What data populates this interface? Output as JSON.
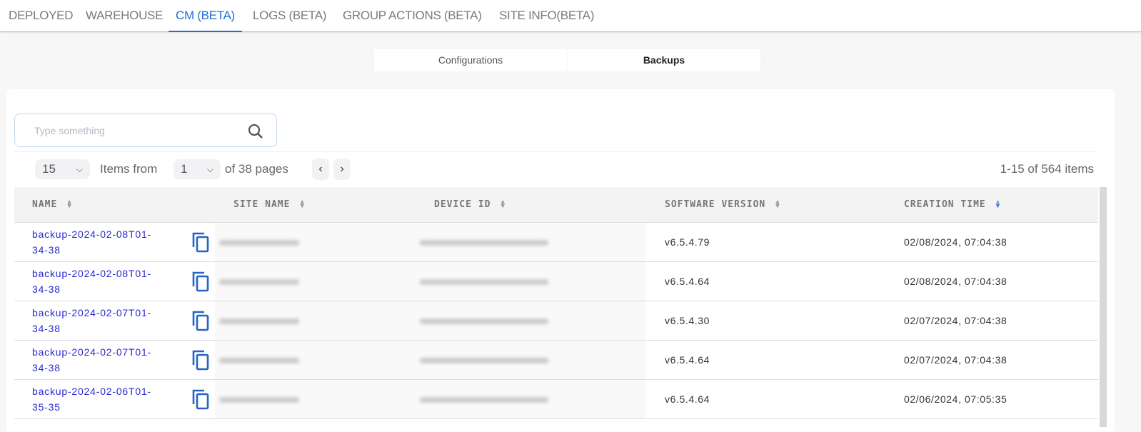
{
  "tabs": [
    {
      "label": "DEPLOYED"
    },
    {
      "label": "WAREHOUSE"
    },
    {
      "label": "CM (BETA)",
      "active": true
    },
    {
      "label": "LOGS (BETA)"
    },
    {
      "label": "GROUP ACTIONS (BETA)"
    },
    {
      "label": "SITE INFO(BETA)"
    }
  ],
  "segments": {
    "configurations": "Configurations",
    "backups": "Backups",
    "active": "Backups"
  },
  "search": {
    "placeholder": "Type something",
    "icon": "search-icon"
  },
  "pager": {
    "page_size": "15",
    "items_from": "Items from",
    "page": "1",
    "of_pages": "of 38 pages",
    "summary": "1-15 of 564 items"
  },
  "table": {
    "columns": [
      "NAME",
      "SITE NAME",
      "DEVICE ID",
      "SOFTWARE VERSION",
      "CREATION TIME"
    ],
    "sorted_column": "CREATION TIME",
    "sort_direction": "descending",
    "rows": [
      {
        "name_line1": "backup-2024-02-08T01-",
        "name_line2": "34-38",
        "version": "v6.5.4.79",
        "time": "02/08/2024, 07:04:38"
      },
      {
        "name_line1": "backup-2024-02-08T01-",
        "name_line2": "34-38",
        "version": "v6.5.4.64",
        "time": "02/08/2024, 07:04:38"
      },
      {
        "name_line1": "backup-2024-02-07T01-",
        "name_line2": "34-38",
        "version": "v6.5.4.30",
        "time": "02/07/2024, 07:04:38"
      },
      {
        "name_line1": "backup-2024-02-07T01-",
        "name_line2": "34-38",
        "version": "v6.5.4.64",
        "time": "02/07/2024, 07:04:38"
      },
      {
        "name_line1": "backup-2024-02-06T01-",
        "name_line2": "35-35",
        "version": "v6.5.4.64",
        "time": "02/06/2024, 07:05:35"
      }
    ]
  },
  "colors": {
    "accent": "#1e6fd9",
    "link": "#2a2ad0",
    "copy_icon": "#2563c9"
  }
}
